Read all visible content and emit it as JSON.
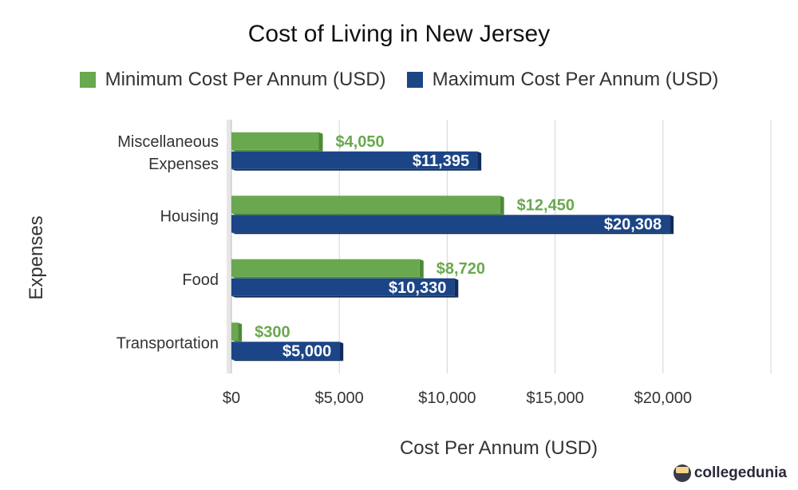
{
  "chart_data": {
    "type": "bar",
    "orientation": "horizontal",
    "title": "Cost of Living in New Jersey",
    "xlabel": "Cost Per Annum (USD)",
    "ylabel": "Expenses",
    "categories": [
      "Miscellaneous Expenses",
      "Housing",
      "Food",
      "Transportation"
    ],
    "series": [
      {
        "name": "Minimum Cost Per Annum (USD)",
        "color": "#6aa84f",
        "values": [
          4050,
          12450,
          8720,
          300
        ],
        "labels": [
          "$4,050",
          "$12,450",
          "$8,720",
          "$300"
        ]
      },
      {
        "name": "Maximum Cost Per Annum (USD)",
        "color": "#1c4587",
        "values": [
          11395,
          20308,
          10330,
          5000
        ],
        "labels": [
          "$11,395",
          "$20,308",
          "$10,330",
          "$5,000"
        ]
      }
    ],
    "xlim": [
      0,
      25000
    ],
    "x_ticks": [
      0,
      5000,
      10000,
      15000,
      20000
    ],
    "x_tick_labels": [
      "$0",
      "$5,000",
      "$10,000",
      "$15,000",
      "$20,000"
    ],
    "grid": true,
    "legend_position": "top"
  },
  "watermark": "collegedunia"
}
